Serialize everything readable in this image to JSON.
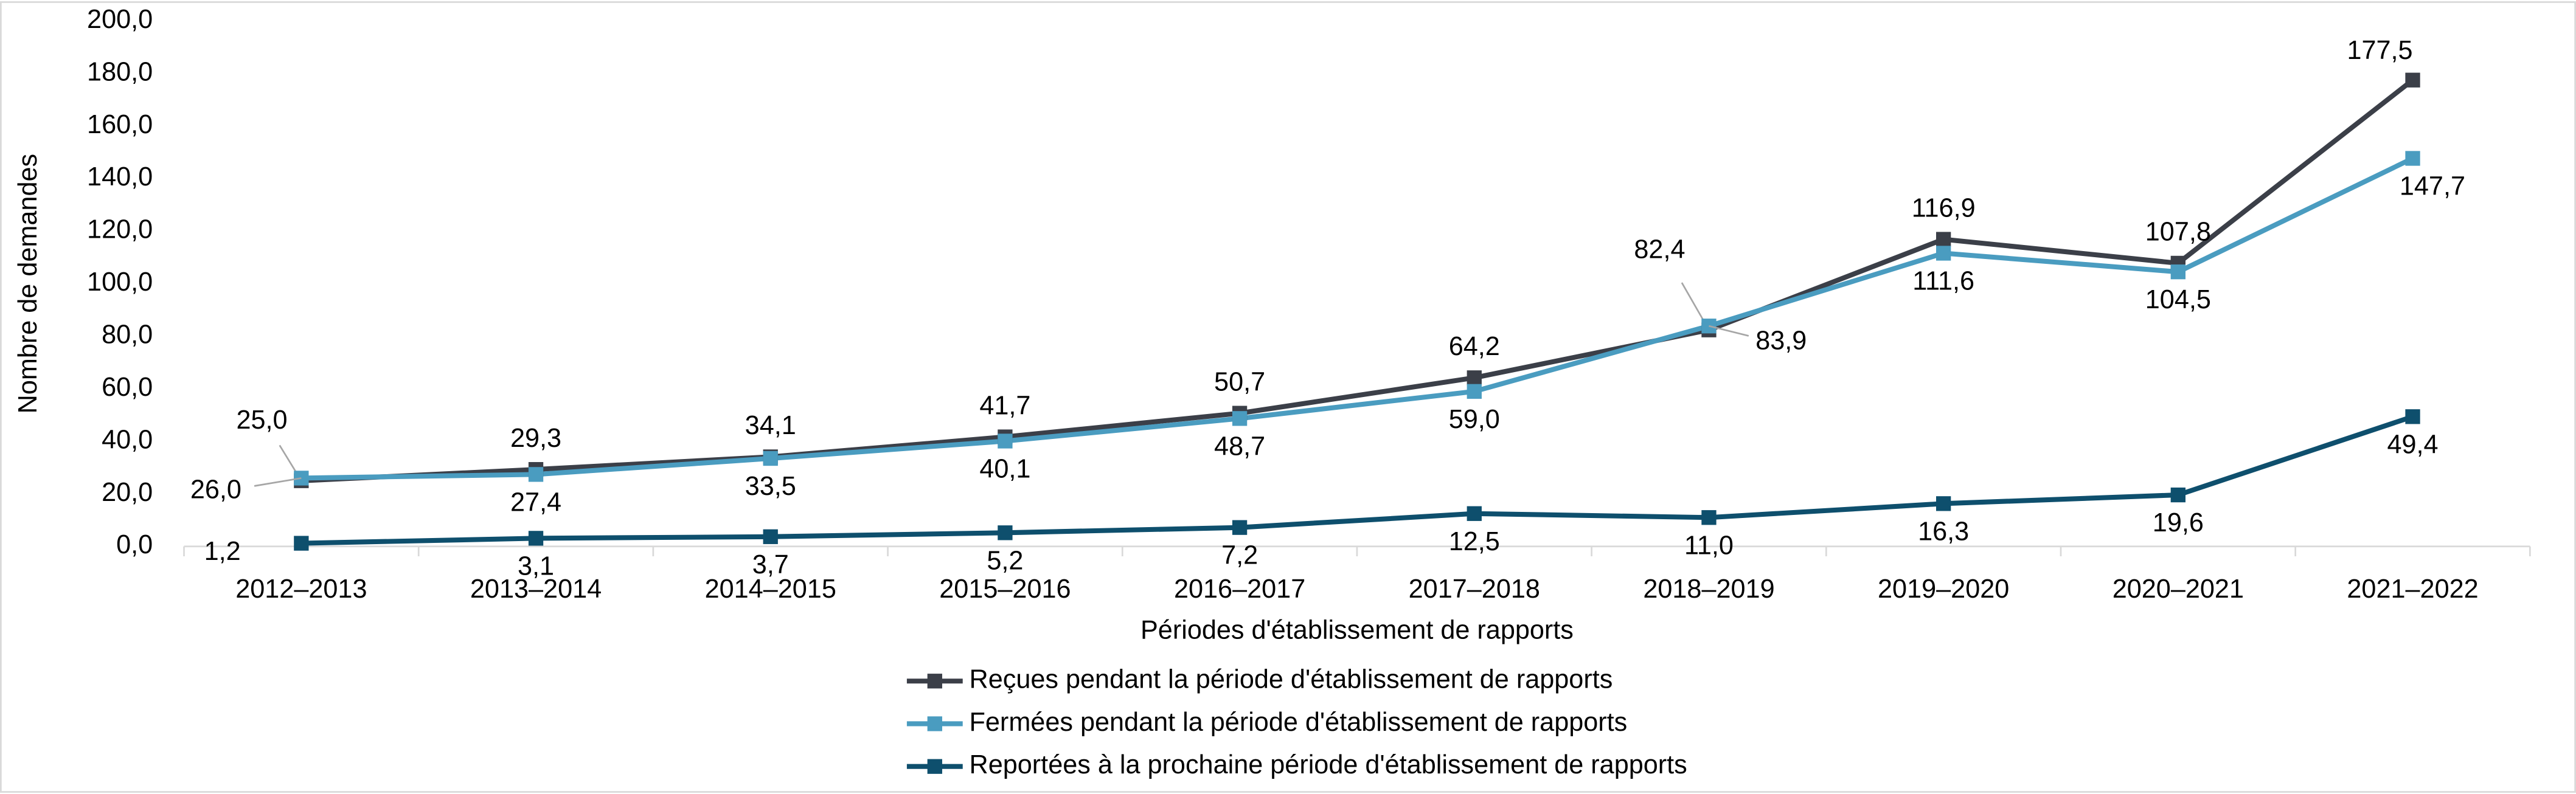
{
  "chart_data": {
    "type": "line",
    "y_label": "Nombre de demandes",
    "x_label": "Périodes d'établissement de rapports",
    "categories": [
      "2012–2013",
      "2013–2014",
      "2014–2015",
      "2015–2016",
      "2016–2017",
      "2017–2018",
      "2018–2019",
      "2019–2020",
      "2020–2021",
      "2021–2022"
    ],
    "ylim": [
      0,
      200
    ],
    "yticks": [
      {
        "value": 0,
        "label": "0,0"
      },
      {
        "value": 20,
        "label": "20,0"
      },
      {
        "value": 40,
        "label": "40,0"
      },
      {
        "value": 60,
        "label": "60,0"
      },
      {
        "value": 80,
        "label": "80,0"
      },
      {
        "value": 100,
        "label": "100,0"
      },
      {
        "value": 120,
        "label": "120,0"
      },
      {
        "value": 140,
        "label": "140,0"
      },
      {
        "value": 160,
        "label": "160,0"
      },
      {
        "value": 180,
        "label": "180,0"
      },
      {
        "value": 200,
        "label": "200,0"
      }
    ],
    "grid": false,
    "legend": "bottom",
    "series": [
      {
        "name": "Reçues pendant la période d'établissement de rapports",
        "color": "#3b3f48",
        "values": [
          25.0,
          29.3,
          34.1,
          41.7,
          50.7,
          64.2,
          82.4,
          116.9,
          107.8,
          177.5
        ],
        "value_labels": [
          "25,0",
          "29,3",
          "34,1",
          "41,7",
          "50,7",
          "64,2",
          "82,4",
          "116,9",
          "107,8",
          "177,5"
        ]
      },
      {
        "name": "Fermées pendant la période d'établissement de rapports",
        "color": "#4a9cc0",
        "values": [
          26.0,
          27.4,
          33.5,
          40.1,
          48.7,
          59.0,
          83.9,
          111.6,
          104.5,
          147.7
        ],
        "value_labels": [
          "26,0",
          "27,4",
          "33,5",
          "40,1",
          "48,7",
          "59,0",
          "83,9",
          "111,6",
          "104,5",
          "147,7"
        ]
      },
      {
        "name": "Reportées à la prochaine période d'établissement de rapports",
        "color": "#0e4f6d",
        "values": [
          1.2,
          3.1,
          3.7,
          5.2,
          7.2,
          12.5,
          11.0,
          16.3,
          19.6,
          49.4
        ],
        "value_labels": [
          "1,2",
          "3,1",
          "3,7",
          "5,2",
          "7,2",
          "12,5",
          "11,0",
          "16,3",
          "19,6",
          "49,4"
        ]
      }
    ]
  }
}
